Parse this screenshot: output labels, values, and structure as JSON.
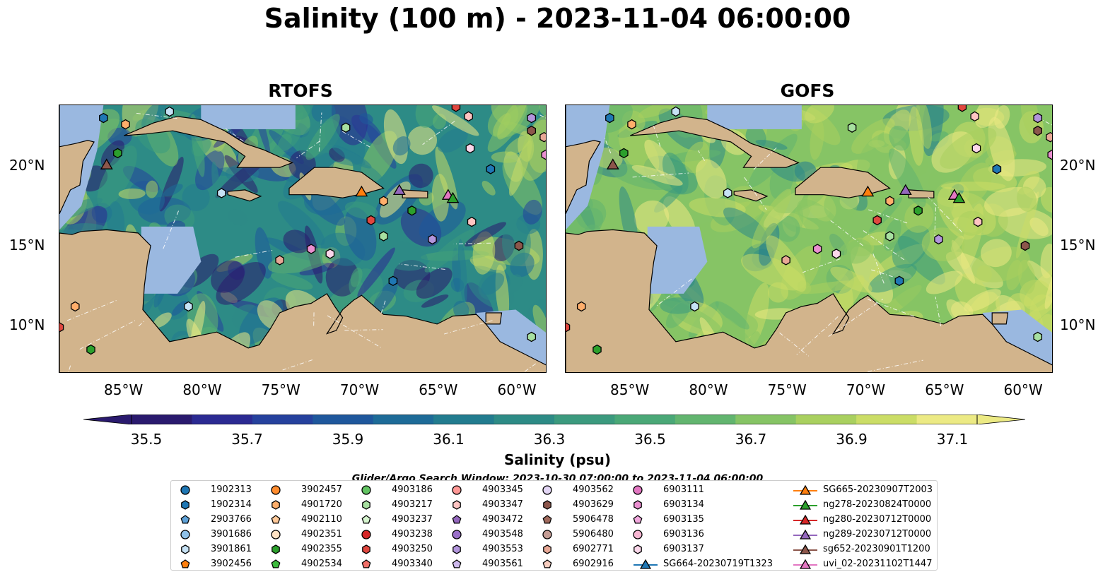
{
  "title": "Salinity (100 m) - 2023-11-04 06:00:00",
  "panels": [
    {
      "title": "RTOFS"
    },
    {
      "title": "GOFS"
    }
  ],
  "axes": {
    "x_ticks": [
      "85°W",
      "80°W",
      "75°W",
      "70°W",
      "65°W",
      "60°W"
    ],
    "y_ticks": [
      "20°N",
      "15°N",
      "10°N"
    ]
  },
  "colorbar": {
    "label": "Salinity (psu)",
    "ticks": [
      "35.5",
      "35.7",
      "35.9",
      "36.1",
      "36.3",
      "36.5",
      "36.7",
      "36.9",
      "37.1"
    ],
    "colors": [
      "#2a1a6e",
      "#2b2a92",
      "#25419d",
      "#1e579c",
      "#1d6b98",
      "#227c8f",
      "#2d8b86",
      "#3b9a7e",
      "#4aa877",
      "#62b56f",
      "#86c465",
      "#a9d05f",
      "#cbdd66",
      "#ecea84"
    ]
  },
  "legend": {
    "title": "Glider/Argo Search Window: 2023-10-30 07:00:00 to 2023-11-04 06:00:00",
    "columns": [
      [
        {
          "label": "1902313",
          "marker": "circle",
          "color": "#1f77b4"
        },
        {
          "label": "1902314",
          "marker": "hexagon",
          "color": "#1f77b4"
        },
        {
          "label": "2903766",
          "marker": "pentagon",
          "color": "#5fa2d8"
        },
        {
          "label": "3901686",
          "marker": "circle",
          "color": "#8fc1e8"
        },
        {
          "label": "3901861",
          "marker": "hexagon",
          "color": "#c6e2f5"
        },
        {
          "label": "3902456",
          "marker": "pentagon",
          "color": "#ff7f0e"
        }
      ],
      [
        {
          "label": "3902457",
          "marker": "circle",
          "color": "#ff8c2e"
        },
        {
          "label": "4901720",
          "marker": "hexagon",
          "color": "#ffae6b"
        },
        {
          "label": "4902110",
          "marker": "pentagon",
          "color": "#ffc999"
        },
        {
          "label": "4902351",
          "marker": "circle",
          "color": "#ffe2c4"
        },
        {
          "label": "4902355",
          "marker": "hexagon",
          "color": "#2ca02c"
        },
        {
          "label": "4902534",
          "marker": "pentagon",
          "color": "#3dbb3d"
        }
      ],
      [
        {
          "label": "4903186",
          "marker": "circle",
          "color": "#62c462"
        },
        {
          "label": "4903217",
          "marker": "hexagon",
          "color": "#a7e0a0"
        },
        {
          "label": "4903237",
          "marker": "pentagon",
          "color": "#d6f5cf"
        },
        {
          "label": "4903238",
          "marker": "circle",
          "color": "#d62728"
        },
        {
          "label": "4903250",
          "marker": "hexagon",
          "color": "#e0473f"
        },
        {
          "label": "4903340",
          "marker": "pentagon",
          "color": "#f06f68"
        }
      ],
      [
        {
          "label": "4903345",
          "marker": "circle",
          "color": "#ff9896"
        },
        {
          "label": "4903347",
          "marker": "hexagon",
          "color": "#ffc4c2"
        },
        {
          "label": "4903472",
          "marker": "pentagon",
          "color": "#9467bd"
        },
        {
          "label": "4903548",
          "marker": "circle",
          "color": "#9a70c8"
        },
        {
          "label": "4903553",
          "marker": "hexagon",
          "color": "#b295dc"
        },
        {
          "label": "4903561",
          "marker": "pentagon",
          "color": "#cdb8ec"
        }
      ],
      [
        {
          "label": "4903562",
          "marker": "circle",
          "color": "#e3d6f5"
        },
        {
          "label": "4903629",
          "marker": "hexagon",
          "color": "#8c564b"
        },
        {
          "label": "5906478",
          "marker": "pentagon",
          "color": "#a06a5d"
        },
        {
          "label": "5906480",
          "marker": "circle",
          "color": "#c49c94"
        },
        {
          "label": "6902771",
          "marker": "hexagon",
          "color": "#e8a896"
        },
        {
          "label": "6902916",
          "marker": "pentagon",
          "color": "#f7cdbf"
        }
      ],
      [
        {
          "label": "6903111",
          "marker": "circle",
          "color": "#e377c2"
        },
        {
          "label": "6903134",
          "marker": "hexagon",
          "color": "#ea8fd0"
        },
        {
          "label": "6903135",
          "marker": "pentagon",
          "color": "#f2a8de"
        },
        {
          "label": "6903136",
          "marker": "circle",
          "color": "#f7b6d2"
        },
        {
          "label": "6903137",
          "marker": "hexagon",
          "color": "#fbd7ea"
        },
        {
          "label": "SG664-20230719T1323",
          "marker": "triangle-line",
          "color": "#1f77b4"
        }
      ],
      [
        {
          "label": "SG665-20230907T2003",
          "marker": "triangle-line",
          "color": "#ff7f0e"
        },
        {
          "label": "ng278-20230824T0000",
          "marker": "triangle-line",
          "color": "#2ca02c"
        },
        {
          "label": "ng280-20230712T0000",
          "marker": "triangle-line",
          "color": "#d62728"
        },
        {
          "label": "ng289-20230712T0000",
          "marker": "triangle-line",
          "color": "#9467bd"
        },
        {
          "label": "sg652-20230901T1200",
          "marker": "triangle-line",
          "color": "#8c564b"
        },
        {
          "label": "uvi_02-20231102T1447",
          "marker": "triangle-line",
          "color": "#e377c2"
        }
      ]
    ]
  },
  "colors": {
    "land": "#d2b48c",
    "shallow": "#9ab8e0",
    "deep_pacific": "#2a1a6e"
  }
}
